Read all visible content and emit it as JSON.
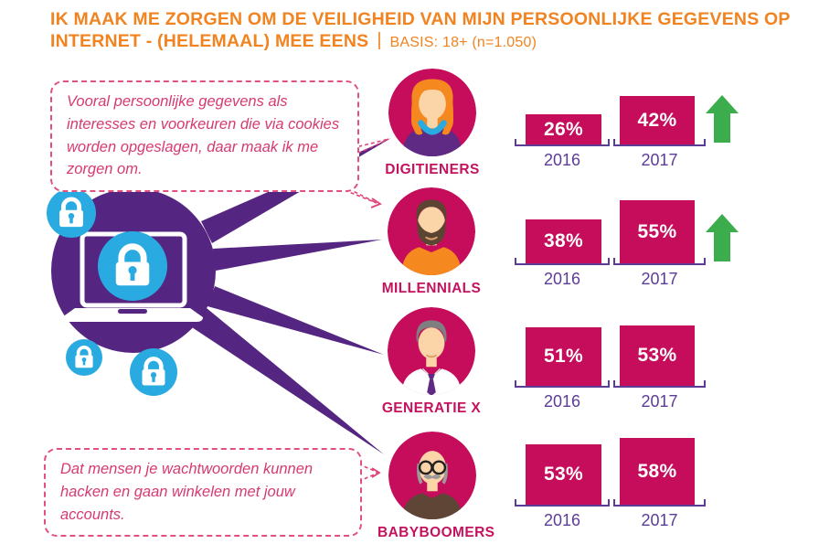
{
  "header": {
    "line1": "IK MAAK ME ZORGEN OM DE VEILIGHEID VAN MIJN PERSOONLIJKE GEGEVENS OP",
    "line2": "INTERNET - (HELEMAAL) MEE EENS",
    "separator": "|",
    "basis": "BASIS: 18+ (n=1.050)"
  },
  "bubbles": [
    {
      "text": "Vooral persoonlijke gegevens als interesses en voorkeuren die via cookies worden opgeslagen, daar maak ik me zorgen om."
    },
    {
      "text": "Dat mensen je wachtwoorden kunnen hacken en gaan winkelen met jouw accounts."
    }
  ],
  "chart_data": {
    "type": "bar",
    "title": "IK MAAK ME ZORGEN OM DE VEILIGHEID VAN MIJN PERSOONLIJKE GEGEVENS OP INTERNET - (HELEMAAL) MEE EENS",
    "basis": "18+ (n=1.050)",
    "categories": [
      "2016",
      "2017"
    ],
    "series": [
      {
        "name": "Digitieners",
        "values": [
          26,
          42
        ],
        "trend_up": true
      },
      {
        "name": "Millennials",
        "values": [
          38,
          55
        ],
        "trend_up": true
      },
      {
        "name": "Generatie X",
        "values": [
          51,
          53
        ],
        "trend_up": false
      },
      {
        "name": "Babyboomers",
        "values": [
          53,
          58
        ],
        "trend_up": false
      }
    ],
    "unit": "%",
    "value_range": [
      0,
      100
    ],
    "legend": "none",
    "grid": false
  },
  "icons": {
    "hub": "laptop-with-padlock",
    "floating": "padlock-icon",
    "trend": "green-up-arrow"
  },
  "colors": {
    "title_orange": "#F18321",
    "bar_magenta": "#C50D5C",
    "hub_purple": "#552582",
    "lock_blue": "#29ABE2",
    "trend_green": "#3BAD4C",
    "bubble_pink": "#D63A72",
    "axis_purple": "#5C3C96"
  }
}
